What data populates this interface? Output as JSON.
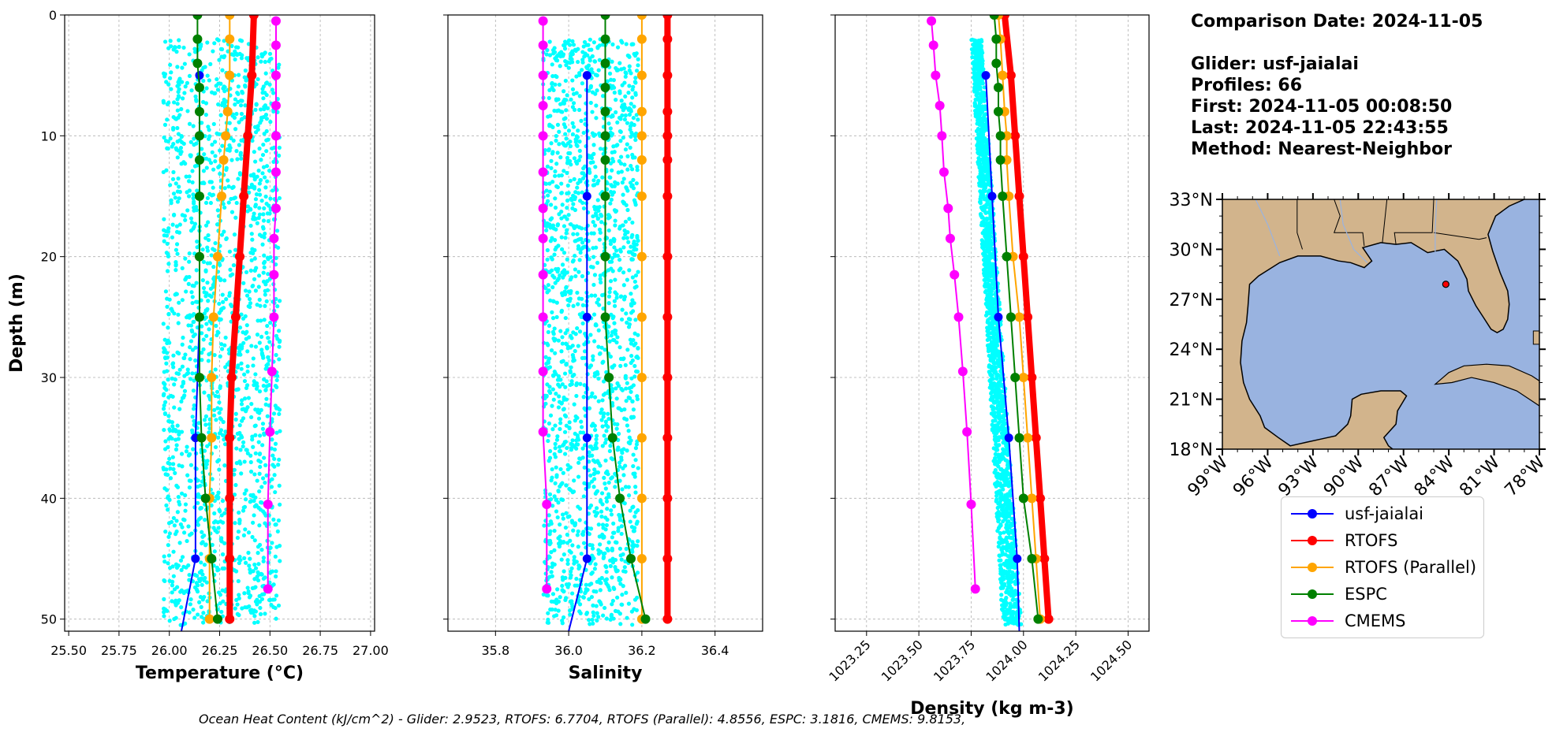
{
  "info": {
    "comparison_date": "Comparison Date: 2024-11-05",
    "glider": "Glider: usf-jaialai",
    "profiles": "Profiles: 66",
    "first": "First: 2024-11-05 00:08:50",
    "last": "Last: 2024-11-05 22:43:55",
    "method": "Method: Nearest-Neighbor"
  },
  "footer": "Ocean Heat Content (kJ/cm^2) - Glider: 2.9523,  RTOFS: 6.7704,  RTOFS (Parallel): 4.8556,  ESPC: 3.1816,  CMEMS: 9.8153,",
  "colors": {
    "glider": "#0000ff",
    "rtofs": "#ff0000",
    "rtofs_parallel": "#ffa500",
    "espc": "#008000",
    "cmems": "#ff00ff",
    "glider_scatter": "#00ffff",
    "ocean": "#99b3e0",
    "land": "#d2b48c"
  },
  "legend": [
    {
      "label": "usf-jaialai",
      "color": "#0000ff"
    },
    {
      "label": "RTOFS",
      "color": "#ff0000"
    },
    {
      "label": "RTOFS (Parallel)",
      "color": "#ffa500"
    },
    {
      "label": "ESPC",
      "color": "#008000"
    },
    {
      "label": "CMEMS",
      "color": "#ff00ff"
    }
  ],
  "chart_data": [
    {
      "type": "line",
      "xlabel": "Temperature (°C)",
      "ylabel": "Depth (m)",
      "xlim": [
        25.48,
        27.02
      ],
      "ylim": [
        51,
        0
      ],
      "xticks": [
        "25.50",
        "25.75",
        "26.00",
        "26.25",
        "26.50",
        "26.75",
        "27.00"
      ],
      "xtick_values": [
        25.5,
        25.75,
        26.0,
        26.25,
        26.5,
        26.75,
        27.0
      ],
      "yticks": [
        "0",
        "10",
        "20",
        "30",
        "40",
        "50"
      ],
      "ytick_values": [
        0,
        10,
        20,
        30,
        40,
        50
      ],
      "grid": true,
      "scatter_range": {
        "x": [
          25.97,
          26.55
        ],
        "y": [
          2,
          50
        ]
      },
      "series": [
        {
          "name": "usf-jaialai",
          "depth": [
            5,
            15,
            25,
            35,
            45,
            51
          ],
          "values": [
            26.15,
            26.15,
            26.15,
            26.13,
            26.13,
            26.06
          ]
        },
        {
          "name": "RTOFS",
          "depth": [
            0,
            5,
            10,
            15,
            20,
            25,
            30,
            35,
            40,
            45,
            50
          ],
          "values": [
            26.42,
            26.41,
            26.39,
            26.37,
            26.35,
            26.33,
            26.31,
            26.3,
            26.3,
            26.3,
            26.3
          ]
        },
        {
          "name": "RTOFS (Parallel)",
          "depth": [
            0,
            2,
            5,
            8,
            10,
            12,
            15,
            20,
            25,
            30,
            35,
            40,
            45,
            50
          ],
          "values": [
            26.3,
            26.3,
            26.3,
            26.29,
            26.28,
            26.27,
            26.26,
            26.24,
            26.22,
            26.21,
            26.21,
            26.2,
            26.2,
            26.2
          ]
        },
        {
          "name": "ESPC",
          "depth": [
            0,
            2,
            4,
            6,
            8,
            10,
            12,
            15,
            20,
            25,
            30,
            35,
            40,
            45,
            50
          ],
          "values": [
            26.14,
            26.14,
            26.14,
            26.15,
            26.15,
            26.15,
            26.15,
            26.15,
            26.15,
            26.15,
            26.15,
            26.16,
            26.18,
            26.21,
            26.24
          ]
        },
        {
          "name": "CMEMS",
          "depth": [
            0.5,
            2.5,
            5,
            7.5,
            10,
            13,
            16,
            18.5,
            21.5,
            25,
            29.5,
            34.5,
            40.5,
            47.5
          ],
          "values": [
            26.53,
            26.53,
            26.53,
            26.53,
            26.53,
            26.53,
            26.53,
            26.52,
            26.52,
            26.52,
            26.51,
            26.5,
            26.49,
            26.49
          ]
        }
      ]
    },
    {
      "type": "line",
      "xlabel": "Salinity",
      "ylabel": "",
      "xlim": [
        35.67,
        36.53
      ],
      "ylim": [
        51,
        0
      ],
      "xticks": [
        "35.8",
        "36.0",
        "36.2",
        "36.4"
      ],
      "xtick_values": [
        35.8,
        36.0,
        36.2,
        36.4
      ],
      "grid": true,
      "scatter_range": {
        "x": [
          35.93,
          36.19
        ],
        "y": [
          2,
          50
        ]
      },
      "series": [
        {
          "name": "usf-jaialai",
          "depth": [
            5,
            15,
            25,
            35,
            45,
            51
          ],
          "values": [
            36.05,
            36.05,
            36.05,
            36.05,
            36.05,
            36.0
          ]
        },
        {
          "name": "RTOFS",
          "depth": [
            0,
            2,
            5,
            8,
            10,
            12,
            15,
            20,
            25,
            30,
            35,
            40,
            45,
            50
          ],
          "values": [
            36.27,
            36.27,
            36.27,
            36.27,
            36.27,
            36.27,
            36.27,
            36.27,
            36.27,
            36.27,
            36.27,
            36.27,
            36.27,
            36.27
          ]
        },
        {
          "name": "RTOFS (Parallel)",
          "depth": [
            0,
            2,
            5,
            8,
            10,
            12,
            15,
            20,
            25,
            30,
            35,
            40,
            45,
            50
          ],
          "values": [
            36.2,
            36.2,
            36.2,
            36.2,
            36.2,
            36.2,
            36.2,
            36.2,
            36.2,
            36.2,
            36.2,
            36.2,
            36.2,
            36.2
          ]
        },
        {
          "name": "ESPC",
          "depth": [
            0,
            2,
            4,
            6,
            8,
            10,
            12,
            15,
            20,
            25,
            30,
            35,
            40,
            45,
            50
          ],
          "values": [
            36.1,
            36.1,
            36.1,
            36.1,
            36.1,
            36.1,
            36.1,
            36.1,
            36.1,
            36.1,
            36.11,
            36.12,
            36.14,
            36.17,
            36.21
          ]
        },
        {
          "name": "CMEMS",
          "depth": [
            0.5,
            2.5,
            5,
            7.5,
            10,
            13,
            16,
            18.5,
            21.5,
            25,
            29.5,
            34.5,
            40.5,
            47.5
          ],
          "values": [
            35.93,
            35.93,
            35.93,
            35.93,
            35.93,
            35.93,
            35.93,
            35.93,
            35.93,
            35.93,
            35.93,
            35.93,
            35.94,
            35.94
          ]
        }
      ]
    },
    {
      "type": "line",
      "xlabel": "Density (kg m-3)",
      "ylabel": "",
      "xlim": [
        1023.1,
        1024.6
      ],
      "ylim": [
        51,
        0
      ],
      "xticks": [
        "1023.25",
        "1023.50",
        "1023.75",
        "1024.00",
        "1024.25",
        "1024.50"
      ],
      "xtick_values": [
        1023.25,
        1023.5,
        1023.75,
        1024.0,
        1024.25,
        1024.5
      ],
      "grid": true,
      "scatter_band": {
        "top": [
          1023.75,
          1023.8
        ],
        "bottom": [
          1023.9,
          1023.99
        ]
      },
      "series": [
        {
          "name": "usf-jaialai",
          "depth": [
            5,
            15,
            25,
            35,
            45,
            51
          ],
          "values": [
            1023.82,
            1023.85,
            1023.88,
            1023.93,
            1023.97,
            1023.98
          ]
        },
        {
          "name": "RTOFS",
          "depth": [
            0,
            5,
            10,
            15,
            20,
            25,
            30,
            35,
            40,
            45,
            50
          ],
          "values": [
            1023.91,
            1023.94,
            1023.96,
            1023.98,
            1024.0,
            1024.02,
            1024.04,
            1024.06,
            1024.08,
            1024.1,
            1024.12
          ]
        },
        {
          "name": "RTOFS (Parallel)",
          "depth": [
            0,
            2,
            5,
            8,
            10,
            12,
            15,
            20,
            25,
            30,
            35,
            40,
            45,
            50
          ],
          "values": [
            1023.88,
            1023.89,
            1023.9,
            1023.91,
            1023.92,
            1023.92,
            1023.93,
            1023.95,
            1023.98,
            1024.0,
            1024.02,
            1024.04,
            1024.06,
            1024.08
          ]
        },
        {
          "name": "ESPC",
          "depth": [
            0,
            2,
            4,
            6,
            8,
            10,
            12,
            15,
            20,
            25,
            30,
            35,
            40,
            45,
            50
          ],
          "values": [
            1023.86,
            1023.87,
            1023.87,
            1023.88,
            1023.88,
            1023.89,
            1023.89,
            1023.9,
            1023.92,
            1023.94,
            1023.96,
            1023.98,
            1024.0,
            1024.04,
            1024.07
          ]
        },
        {
          "name": "CMEMS",
          "depth": [
            0.5,
            2.5,
            5,
            7.5,
            10,
            13,
            16,
            18.5,
            21.5,
            25,
            29.5,
            34.5,
            40.5,
            47.5
          ],
          "values": [
            1023.56,
            1023.57,
            1023.58,
            1023.6,
            1023.61,
            1023.62,
            1023.64,
            1023.65,
            1023.67,
            1023.69,
            1023.71,
            1023.73,
            1023.75,
            1023.77
          ]
        }
      ]
    },
    {
      "type": "map",
      "xticks": [
        "99°W",
        "96°W",
        "93°W",
        "90°W",
        "87°W",
        "84°W",
        "81°W",
        "78°W"
      ],
      "xtick_values": [
        -99,
        -96,
        -93,
        -90,
        -87,
        -84,
        -81,
        -78
      ],
      "yticks": [
        "33°N",
        "30°N",
        "27°N",
        "24°N",
        "21°N",
        "18°N"
      ],
      "ytick_values": [
        33,
        30,
        27,
        24,
        21,
        18
      ],
      "lon_range": [
        -99,
        -78
      ],
      "lat_range": [
        18,
        33
      ],
      "marker": {
        "lon": -84.2,
        "lat": 27.9
      }
    }
  ]
}
